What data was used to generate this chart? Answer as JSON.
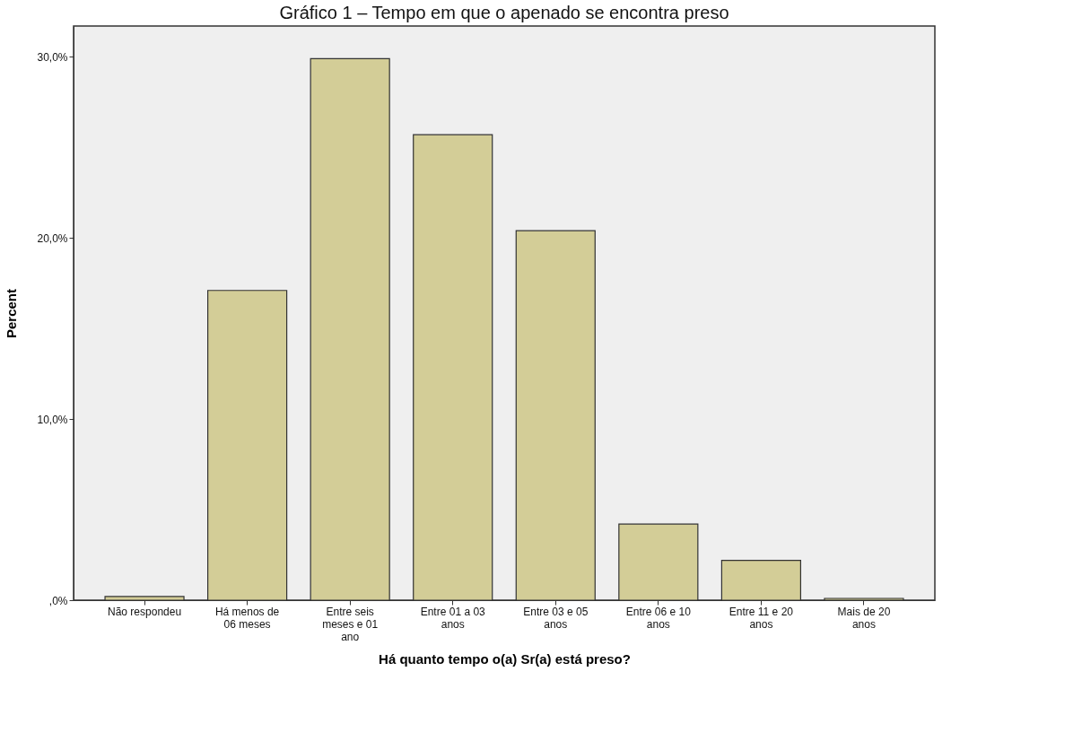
{
  "chart_data": {
    "type": "bar",
    "title": "Gráfico 1 – Tempo em que o apenado se encontra preso",
    "xlabel": "Há quanto tempo o(a) Sr(a) está preso?",
    "ylabel": "Percent",
    "categories": [
      "Não respondeu",
      "Há menos de 06 meses",
      "Entre seis meses e 01 ano",
      "Entre 01 a 03 anos",
      "Entre 03 e 05 anos",
      "Entre 06 e 10 anos",
      "Entre 11 e 20 anos",
      "Mais de 20 anos"
    ],
    "values": [
      0.2,
      17.1,
      29.9,
      25.7,
      20.4,
      4.2,
      2.2,
      0.1
    ],
    "color": "#d3cd97",
    "ylim": [
      0,
      31.7
    ],
    "yticks": [
      {
        "value": 0,
        "label": ",0%"
      },
      {
        "value": 10,
        "label": "10,0%"
      },
      {
        "value": 20,
        "label": "20,0%"
      },
      {
        "value": 30,
        "label": "30,0%"
      }
    ],
    "grid": false
  }
}
